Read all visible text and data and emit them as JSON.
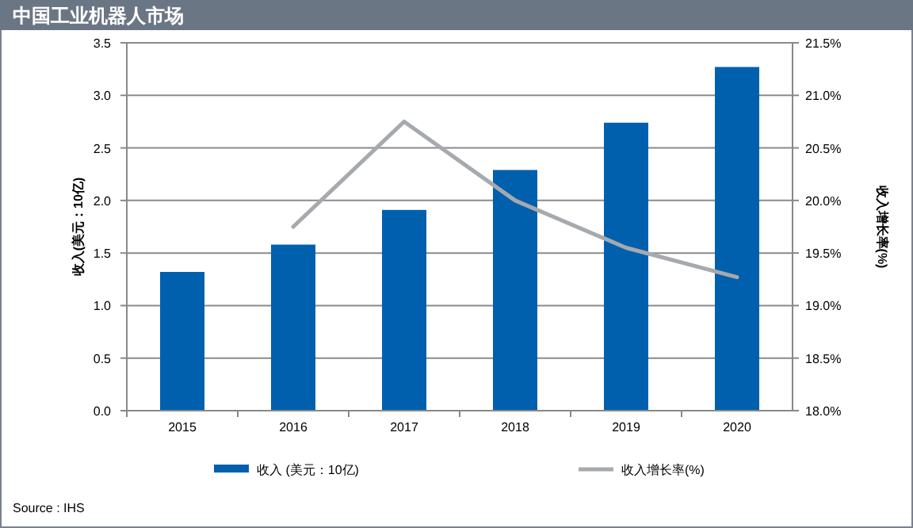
{
  "chart_data": {
    "type": "bar",
    "title": "中国工业机器人市场",
    "ylabel": "收入(美元：10亿)",
    "y2label": "收入增长率(%)",
    "categories": [
      "2015",
      "2016",
      "2017",
      "2018",
      "2019",
      "2020"
    ],
    "series": [
      {
        "name": "收入 (美元：10亿)",
        "color": "#0060ae",
        "values": [
          1.32,
          1.58,
          1.91,
          2.29,
          2.74,
          3.27
        ]
      },
      {
        "name": "收入增长率(%)",
        "type": "line",
        "axis": "y2",
        "color": "#a6a9ad",
        "values": [
          null,
          19.75,
          20.75,
          20.0,
          19.55,
          19.27
        ]
      }
    ],
    "ylim": [
      0,
      3.5
    ],
    "yticks": [
      {
        "value": 0,
        "label": "0.0"
      },
      {
        "value": 0.5,
        "label": "0.5"
      },
      {
        "value": 1,
        "label": "1.0"
      },
      {
        "value": 1.5,
        "label": "1.5"
      },
      {
        "value": 2,
        "label": "2.0"
      },
      {
        "value": 2.5,
        "label": "2.5"
      },
      {
        "value": 3,
        "label": "3.0"
      },
      {
        "value": 3.5,
        "label": "3.5"
      }
    ],
    "y2lim": [
      18,
      21.5
    ],
    "y2ticks": [
      {
        "value": 18,
        "label": "18.0%"
      },
      {
        "value": 18.5,
        "label": "18.5%"
      },
      {
        "value": 19,
        "label": "19.0%"
      },
      {
        "value": 19.5,
        "label": "19.5%"
      },
      {
        "value": 20,
        "label": "20.0%"
      },
      {
        "value": 20.5,
        "label": "20.5%"
      },
      {
        "value": 21,
        "label": "21.0%"
      },
      {
        "value": 21.5,
        "label": "21.5%"
      }
    ],
    "grid": "y",
    "legend": "bottom",
    "annotations": [
      "Source : IHS"
    ]
  }
}
